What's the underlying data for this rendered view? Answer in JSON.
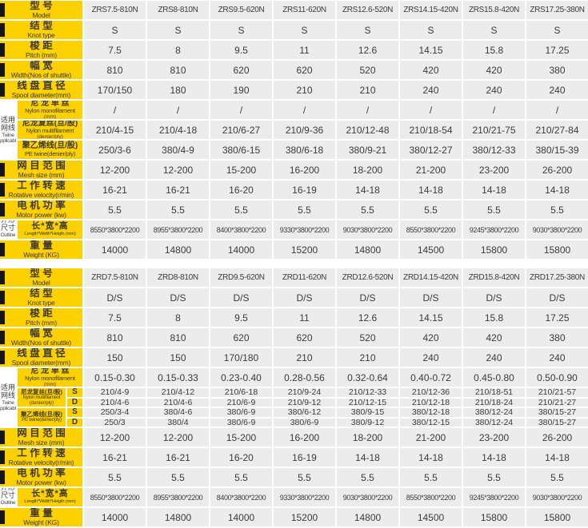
{
  "colors": {
    "accent_yellow": "#fdd000",
    "cell_gray": "#ececec",
    "text_dark": "#3b3b3b"
  },
  "sd": {
    "s": "S",
    "d": "D"
  },
  "side_labels": {
    "twine": {
      "cn": [
        "适用",
        "网线"
      ],
      "en": [
        "Twine",
        "applicable"
      ]
    },
    "outline": {
      "cn": [
        "外形",
        "尺寸"
      ],
      "en": [
        "Outline",
        "size"
      ]
    }
  },
  "row_labels": {
    "model": {
      "cn": "型 号",
      "en": "Model"
    },
    "knot": {
      "cn": "结 型",
      "en": "Knot type"
    },
    "pitch": {
      "cn": "梭 距",
      "en": "Pitch (mm)"
    },
    "width": {
      "cn": "幅 宽",
      "en": "Width(Nos of shuttle)"
    },
    "spool": {
      "cn": "线 盘 直 径",
      "en": "Spool diameter(mm)"
    },
    "mono": {
      "cn": "尼 龙 单 丝",
      "en": "Nylon monofilament",
      "sub": "(mm)"
    },
    "multi": {
      "cn": "尼龙复丝(旦/股)",
      "en": "Nylon multifilament",
      "sub": "(denier/ply)"
    },
    "pe": {
      "cn": "聚乙烯线(旦/股)",
      "en": "PE twine(denier/ply)"
    },
    "mesh": {
      "cn": "网 目 范 围",
      "en": "Mesh size (mm)"
    },
    "velocity": {
      "cn": "工 作 转 速",
      "en": "Rotative velocity(r/min)"
    },
    "motor": {
      "cn": "电 机 功 率",
      "en": "Motor power (kw)"
    },
    "lwh": {
      "cn": "长*宽*高",
      "en": "Length*Width*Heigth (mm)"
    },
    "weight": {
      "cn": "重 量",
      "en": "Weight (KG)"
    }
  },
  "tables": [
    {
      "id": "zrs",
      "rows": {
        "model": [
          "ZRS7.5-810N",
          "ZRS8-810N",
          "ZRS9.5-620N",
          "ZRS11-620N",
          "ZRS12.6-520N",
          "ZRS14.15-420N",
          "ZRS15.8-420N",
          "ZRS17.25-380N"
        ],
        "knot": [
          "S",
          "S",
          "S",
          "S",
          "S",
          "S",
          "S",
          "S"
        ],
        "pitch": [
          "7.5",
          "8",
          "9.5",
          "11",
          "12.6",
          "14.15",
          "15.8",
          "17.25"
        ],
        "width": [
          "810",
          "810",
          "620",
          "620",
          "520",
          "420",
          "420",
          "380"
        ],
        "spool": [
          "170/150",
          "180",
          "190",
          "210",
          "210",
          "240",
          "240",
          "240"
        ],
        "mono": [
          "/",
          "/",
          "/",
          "/",
          "/",
          "/",
          "/",
          "/"
        ],
        "multi": [
          "210/4-15",
          "210/4-18",
          "210/6-27",
          "210/9-36",
          "210/12-48",
          "210/18-54",
          "210/21-75",
          "210/27-84"
        ],
        "pe": [
          "250/3-6",
          "380/4-9",
          "380/6-15",
          "380/6-18",
          "380/9-21",
          "380/12-27",
          "380/12-33",
          "380/15-39"
        ],
        "mesh": [
          "12-200",
          "12-200",
          "15-200",
          "16-200",
          "18-200",
          "21-200",
          "23-200",
          "26-200"
        ],
        "velocity": [
          "16-21",
          "16-21",
          "16-20",
          "16-19",
          "14-18",
          "14-18",
          "14-18",
          "14-18"
        ],
        "motor": [
          "5.5",
          "5.5",
          "5.5",
          "5.5",
          "5.5",
          "5.5",
          "5.5",
          "5.5"
        ],
        "lwh": [
          "8550*3800*2200",
          "8955*3800*2200",
          "8400*3800*2200",
          "9330*3800*2200",
          "9030*3800*2200",
          "8550*3800*2200",
          "9245*3800*2200",
          "9030*3800*2200"
        ],
        "weight": [
          "14000",
          "14800",
          "14000",
          "15200",
          "14800",
          "14500",
          "15800",
          "15800"
        ]
      }
    },
    {
      "id": "zrd",
      "rows": {
        "model": [
          "ZRD7.5-810N",
          "ZRD8-810N",
          "ZRD9.5-620N",
          "ZRD11-620N",
          "ZRD12.6-520N",
          "ZRD14.15-420N",
          "ZRD15.8-420N",
          "ZRD17.25-380N"
        ],
        "knot": [
          "D/S",
          "D/S",
          "D/S",
          "D/S",
          "D/S",
          "D/S",
          "D/S",
          "D/S"
        ],
        "pitch": [
          "7.5",
          "8",
          "9.5",
          "11",
          "12.6",
          "14.15",
          "15.8",
          "17.25"
        ],
        "width": [
          "810",
          "810",
          "620",
          "620",
          "520",
          "420",
          "420",
          "380"
        ],
        "spool": [
          "150",
          "150",
          "170/180",
          "210",
          "210",
          "240",
          "240",
          "240"
        ],
        "mono": [
          "0.15-0.30",
          "0.15-0.33",
          "0.23-0.40",
          "0.28-0.56",
          "0.32-0.64",
          "0.40-0.72",
          "0.45-0.80",
          "0.50-0.90"
        ],
        "multi_s": [
          "210/4-9",
          "210/4-12",
          "210/6-18",
          "210/9-24",
          "210/12-33",
          "210/12-36",
          "210/18-51",
          "210/21-57"
        ],
        "multi_d": [
          "210/4-6",
          "210/4-6",
          "210/6-9",
          "210/9-12",
          "210/12-15",
          "210/12-18",
          "210/18-24",
          "210/21-27"
        ],
        "pe_s": [
          "250/3-4",
          "380/4-6",
          "380/6-9",
          "380/6-12",
          "380/9-15",
          "380/12-18",
          "380/12-24",
          "380/15-27"
        ],
        "pe_d": [
          "250/3",
          "380/4",
          "380/6-9",
          "380/6-9",
          "380/9-12",
          "380/12-15",
          "380/12-24",
          "380/15-27"
        ],
        "mesh": [
          "12-200",
          "12-200",
          "15-200",
          "16-200",
          "18-200",
          "21-200",
          "23-200",
          "26-200"
        ],
        "velocity": [
          "16-21",
          "16-21",
          "16-20",
          "16-19",
          "14-18",
          "14-18",
          "14-18",
          "14-18"
        ],
        "motor": [
          "5.5",
          "5.5",
          "5.5",
          "5.5",
          "5.5",
          "5.5",
          "5.5",
          "5.5"
        ],
        "lwh": [
          "8550*3800*2200",
          "8955*3800*2200",
          "8400*3800*2200",
          "9330*3800*2200",
          "9030*3800*2200",
          "8550*3800*2200",
          "9245*3800*2200",
          "9030*3800*2200"
        ],
        "weight": [
          "14000",
          "14800",
          "14000",
          "15200",
          "14800",
          "14500",
          "15800",
          "15800"
        ]
      }
    }
  ]
}
